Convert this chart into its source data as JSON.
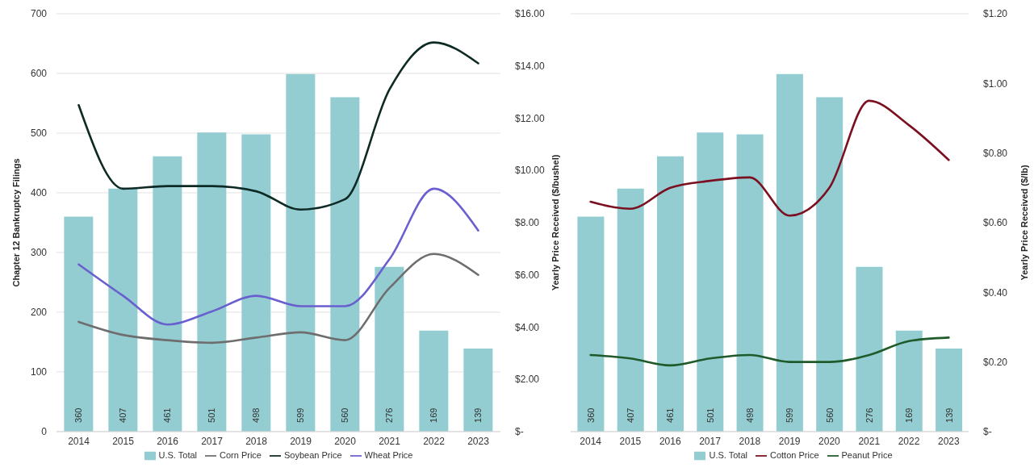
{
  "chart_data": [
    {
      "type": "bar",
      "categories": [
        "2014",
        "2015",
        "2016",
        "2017",
        "2018",
        "2019",
        "2020",
        "2021",
        "2022",
        "2023"
      ],
      "ylabel": "Chapter 12 Bankruptcy Filings",
      "y2label": "Yearly Price Received ($/bushel)",
      "ylim": [
        0,
        700
      ],
      "yticks": [
        0,
        100,
        200,
        300,
        400,
        500,
        600,
        700
      ],
      "y2lim": [
        0,
        16
      ],
      "y2ticks": [
        {
          "value": 0,
          "label": "$-"
        },
        {
          "value": 2,
          "label": "$2.00"
        },
        {
          "value": 4,
          "label": "$4.00"
        },
        {
          "value": 6,
          "label": "$6.00"
        },
        {
          "value": 8,
          "label": "$8.00"
        },
        {
          "value": 10,
          "label": "$10.00"
        },
        {
          "value": 12,
          "label": "$12.00"
        },
        {
          "value": 14,
          "label": "$14.00"
        },
        {
          "value": 16,
          "label": "$16.00"
        }
      ],
      "grid": "y",
      "legend": "bottom",
      "series": [
        {
          "name": "U.S. Total",
          "color": "#93cdd2",
          "values": [
            360,
            407,
            461,
            501,
            498,
            599,
            560,
            276,
            169,
            139
          ],
          "value_labels": [
            "360",
            "407",
            "461",
            "501",
            "498",
            "599",
            "560",
            "276",
            "169",
            "139"
          ]
        },
        {
          "name": "Corn Price",
          "type": "line",
          "axis": "y2",
          "color": "#6e6e6e",
          "values": [
            4.2,
            3.7,
            3.5,
            3.4,
            3.6,
            3.8,
            3.5,
            5.5,
            6.8,
            6.0
          ]
        },
        {
          "name": "Soybean Price",
          "type": "line",
          "axis": "y2",
          "color": "#0e2a25",
          "values": [
            12.5,
            9.3,
            9.4,
            9.4,
            9.2,
            8.5,
            8.9,
            13.1,
            14.9,
            14.1
          ]
        },
        {
          "name": "Wheat Price",
          "type": "line",
          "axis": "y2",
          "color": "#6a5fcf",
          "values": [
            6.4,
            5.2,
            4.1,
            4.6,
            5.2,
            4.8,
            4.8,
            6.6,
            9.3,
            7.7
          ]
        }
      ]
    },
    {
      "type": "bar",
      "categories": [
        "2014",
        "2015",
        "2016",
        "2017",
        "2018",
        "2019",
        "2020",
        "2021",
        "2022",
        "2023"
      ],
      "y2label": "Yearly Price Received ($/lb)",
      "ylim": [
        0,
        700
      ],
      "y2lim": [
        0,
        1.2
      ],
      "y2ticks": [
        {
          "value": 0,
          "label": "$-"
        },
        {
          "value": 0.2,
          "label": "$0.20"
        },
        {
          "value": 0.4,
          "label": "$0.40"
        },
        {
          "value": 0.6,
          "label": "$0.60"
        },
        {
          "value": 0.8,
          "label": "$0.80"
        },
        {
          "value": 1.0,
          "label": "$1.00"
        },
        {
          "value": 1.2,
          "label": "$1.20"
        }
      ],
      "grid": "y",
      "legend": "bottom",
      "tick_labels": [
        "x",
        "y2"
      ],
      "series": [
        {
          "name": "U.S. Total",
          "color": "#93cdd2",
          "values": [
            360,
            407,
            461,
            501,
            498,
            599,
            560,
            276,
            169,
            139
          ],
          "value_labels": [
            "360",
            "407",
            "461",
            "501",
            "498",
            "599",
            "560",
            "276",
            "169",
            "139"
          ]
        },
        {
          "name": "Cotton Price",
          "type": "line",
          "axis": "y2",
          "color": "#7b1020",
          "values": [
            0.66,
            0.64,
            0.7,
            0.72,
            0.73,
            0.62,
            0.7,
            0.95,
            0.88,
            0.78
          ]
        },
        {
          "name": "Peanut Price",
          "type": "line",
          "axis": "y2",
          "color": "#1e5a2a",
          "values": [
            0.22,
            0.21,
            0.19,
            0.21,
            0.22,
            0.2,
            0.2,
            0.22,
            0.26,
            0.27
          ]
        }
      ]
    }
  ]
}
